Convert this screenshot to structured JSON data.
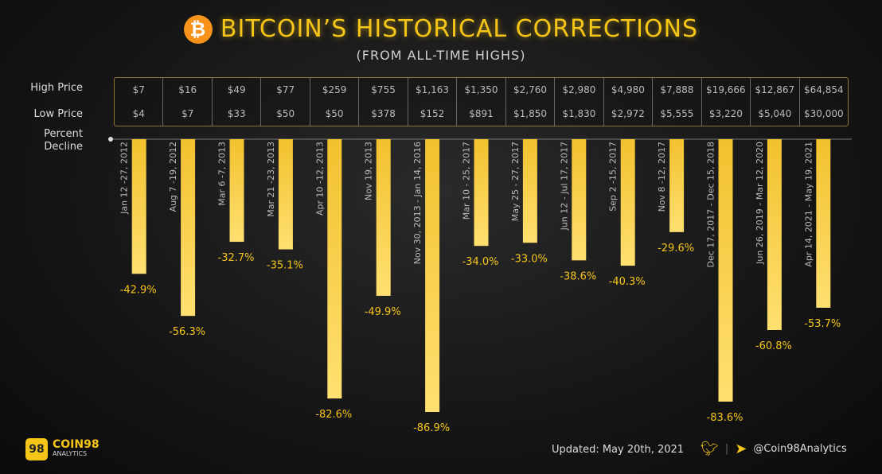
{
  "title": "BITCOIN’S HISTORICAL CORRECTIONS",
  "subtitle": "(FROM ALL-TIME HIGHS)",
  "row_labels": {
    "high": "High Price",
    "low": "Low Price",
    "decline": "Percent\nDecline"
  },
  "colors": {
    "bar": "#f5c518",
    "label": "#f5c518",
    "bitcoin": "#f7931a"
  },
  "chart_data": {
    "type": "bar",
    "orientation": "vertical-downward",
    "title": "BITCOIN’S HISTORICAL CORRECTIONS",
    "subtitle": "(FROM ALL-TIME HIGHS)",
    "ylabel": "Percent Decline",
    "ylim": [
      -90,
      0
    ],
    "grid": false,
    "categories": [
      "Jan 12 -27, 2012",
      "Aug 7 -19, 2012",
      "Mar 6 -7, 2013",
      "Mar 21 -23, 2013",
      "Apr 10 -12, 2013",
      "Nov 19, 2013",
      "Nov 30, 2013 - Jan 14, 2016",
      "Mar 10 - 25, 2017",
      "May 25 - 27, 2017",
      "Jun 12 - Jul 17, 2017",
      "Sep 2 -15, 2017",
      "Nov 8 -12, 2017",
      "Dec 17, 2017 - Dec 15, 2018",
      "Jun 26, 2019 - Mar 12, 2020",
      "Apr 14, 2021 - May 19, 2021"
    ],
    "values": [
      -42.9,
      -56.3,
      -32.7,
      -35.1,
      -82.6,
      -49.9,
      -86.9,
      -34.0,
      -33.0,
      -38.6,
      -40.3,
      -29.6,
      -83.6,
      -60.8,
      -53.7
    ],
    "value_labels": [
      "-42.9%",
      "-56.3%",
      "-32.7%",
      "-35.1%",
      "-82.6%",
      "-49.9%",
      "-86.9%",
      "-34.0%",
      "-33.0%",
      "-38.6%",
      "-40.3%",
      "-29.6%",
      "-83.6%",
      "-60.8%",
      "-53.7%"
    ],
    "high_price": [
      "$7",
      "$16",
      "$49",
      "$77",
      "$259",
      "$755",
      "$1,163",
      "$1,350",
      "$2,760",
      "$2,980",
      "$4,980",
      "$7,888",
      "$19,666",
      "$12,867",
      "$64,854"
    ],
    "low_price": [
      "$4",
      "$7",
      "$33",
      "$50",
      "$50",
      "$378",
      "$152",
      "$891",
      "$1,850",
      "$1,830",
      "$2,972",
      "$5,555",
      "$3,220",
      "$5,040",
      "$30,000"
    ]
  },
  "footer": {
    "brand": "COIN98",
    "brand_sub": "ANALYTICS",
    "logo_mark": "98",
    "updated": "Updated: May 20th, 2021",
    "handle": "@Coin98Analytics",
    "icons": [
      "twitter-icon",
      "telegram-icon"
    ]
  }
}
